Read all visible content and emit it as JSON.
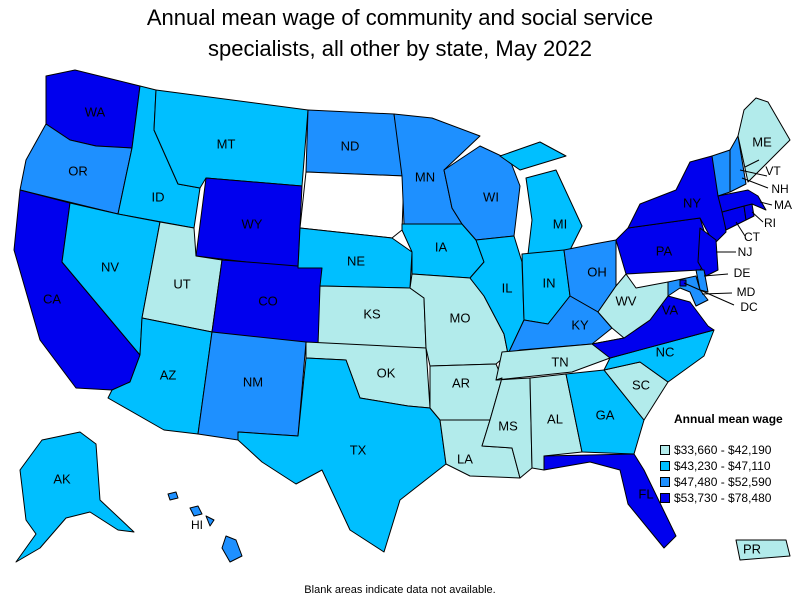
{
  "title_line1": "Annual mean wage of community and social service",
  "title_line2": "specialists, all other by state, May 2022",
  "footnote": "Blank areas indicate data not available.",
  "legend": {
    "title": "Annual mean wage",
    "items": [
      {
        "label": "$33,660 - $42,190",
        "color": "#b2ebeb"
      },
      {
        "label": "$43,230 - $47,110",
        "color": "#00bfff"
      },
      {
        "label": "$47,480 - $52,590",
        "color": "#1e90ff"
      },
      {
        "label": "$53,730 - $78,480",
        "color": "#0000ee"
      }
    ]
  },
  "colors": {
    "none": "#ffffff",
    "c1": "#b2ebeb",
    "c2": "#00bfff",
    "c3": "#1e90ff",
    "c4": "#0000ee"
  },
  "states": {
    "WA": {
      "label": "WA",
      "class": 4
    },
    "OR": {
      "label": "OR",
      "class": 3
    },
    "CA": {
      "label": "CA",
      "class": 4
    },
    "ID": {
      "label": "ID",
      "class": 2
    },
    "NV": {
      "label": "NV",
      "class": 2
    },
    "MT": {
      "label": "MT",
      "class": 2
    },
    "WY": {
      "label": "WY",
      "class": 4
    },
    "UT": {
      "label": "UT",
      "class": 1
    },
    "AZ": {
      "label": "AZ",
      "class": 2
    },
    "CO": {
      "label": "CO",
      "class": 4
    },
    "NM": {
      "label": "NM",
      "class": 3
    },
    "ND": {
      "label": "ND",
      "class": 3
    },
    "SD": {
      "label": "",
      "class": 0
    },
    "NE": {
      "label": "NE",
      "class": 2
    },
    "KS": {
      "label": "KS",
      "class": 1
    },
    "OK": {
      "label": "OK",
      "class": 1
    },
    "TX": {
      "label": "TX",
      "class": 2
    },
    "MN": {
      "label": "MN",
      "class": 3
    },
    "IA": {
      "label": "IA",
      "class": 2
    },
    "MO": {
      "label": "MO",
      "class": 1
    },
    "AR": {
      "label": "AR",
      "class": 1
    },
    "LA": {
      "label": "LA",
      "class": 1
    },
    "WI": {
      "label": "WI",
      "class": 3
    },
    "IL": {
      "label": "IL",
      "class": 2
    },
    "MI": {
      "label": "MI",
      "class": 2
    },
    "IN": {
      "label": "IN",
      "class": 2
    },
    "OH": {
      "label": "OH",
      "class": 3
    },
    "KY": {
      "label": "KY",
      "class": 3
    },
    "TN": {
      "label": "TN",
      "class": 1
    },
    "MS": {
      "label": "MS",
      "class": 1
    },
    "AL": {
      "label": "AL",
      "class": 1
    },
    "GA": {
      "label": "GA",
      "class": 2
    },
    "FL": {
      "label": "FL",
      "class": 4
    },
    "SC": {
      "label": "SC",
      "class": 1
    },
    "NC": {
      "label": "NC",
      "class": 2
    },
    "VA": {
      "label": "VA",
      "class": 4
    },
    "WV": {
      "label": "WV",
      "class": 1
    },
    "PA": {
      "label": "PA",
      "class": 4
    },
    "NY": {
      "label": "NY",
      "class": 4
    },
    "ME": {
      "label": "ME",
      "class": 1
    },
    "VT": {
      "label": "VT",
      "class": 3
    },
    "NH": {
      "label": "NH",
      "class": 3
    },
    "MA": {
      "label": "MA",
      "class": 4
    },
    "RI": {
      "label": "RI",
      "class": 4
    },
    "CT": {
      "label": "CT",
      "class": 4
    },
    "NJ": {
      "label": "NJ",
      "class": 4
    },
    "DE": {
      "label": "DE",
      "class": 3
    },
    "MD": {
      "label": "MD",
      "class": 3
    },
    "DC": {
      "label": "DC",
      "class": 4
    },
    "AK": {
      "label": "AK",
      "class": 2
    },
    "HI": {
      "label": "HI",
      "class": 3
    },
    "PR": {
      "label": "PR",
      "class": 1
    }
  }
}
